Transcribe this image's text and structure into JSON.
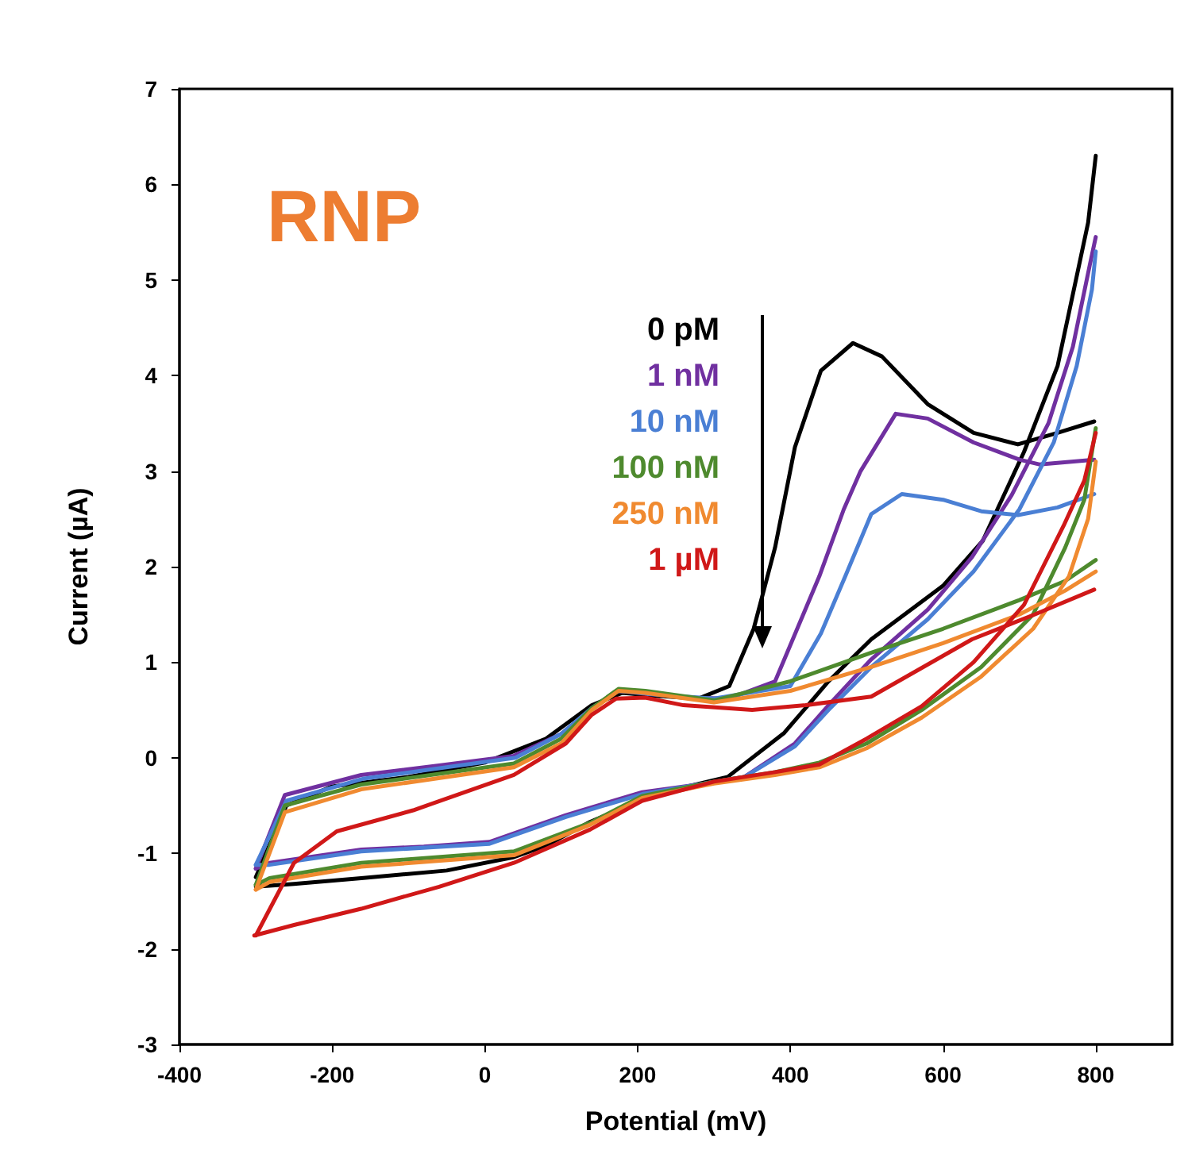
{
  "chart_data": {
    "type": "line",
    "xlabel": "Potential (mV)",
    "ylabel": "Current (µA)",
    "annotations": [
      "RNP"
    ],
    "xlim": [
      -400,
      900
    ],
    "xticks": [
      -400,
      -200,
      0,
      200,
      400,
      600,
      800
    ],
    "ylim": [
      -3,
      7
    ],
    "yticks": [
      -3,
      -2,
      -1,
      0,
      1,
      2,
      3,
      4,
      5,
      6,
      7
    ],
    "legend": "top",
    "marker": "none",
    "line_style": "solid",
    "series": [
      {
        "name": "0 pM",
        "color": "#000000",
        "x": [
          -300,
          -260,
          -200,
          -100,
          0,
          80,
          140,
          180,
          220,
          280,
          320,
          352,
          380,
          406,
          440,
          482,
          520,
          580,
          640,
          698,
          750,
          798
        ],
        "values": [
          -1.25,
          -0.5,
          -0.3,
          -0.2,
          -0.05,
          0.2,
          0.55,
          0.68,
          0.65,
          0.62,
          0.75,
          1.35,
          2.2,
          3.25,
          4.05,
          4.34,
          4.2,
          3.7,
          3.4,
          3.28,
          3.4,
          3.52
        ]
      },
      {
        "color": "#000000",
        "x": [
          800,
          790,
          778,
          750,
          706,
          652,
          600,
          506,
          450,
          392,
          318,
          250,
          206,
          138,
          80,
          38,
          -50,
          -162,
          -250,
          -300
        ],
        "values": [
          6.3,
          5.6,
          5.15,
          4.1,
          3.2,
          2.27,
          1.8,
          1.24,
          0.8,
          0.26,
          -0.2,
          -0.33,
          -0.44,
          -0.67,
          -0.92,
          -1.04,
          -1.18,
          -1.26,
          -1.32,
          -1.35
        ]
      },
      {
        "name": "1 nM",
        "color": "#7030a0",
        "x": [
          -300,
          -262,
          -162,
          -60,
          38,
          100,
          138,
          172,
          206,
          260,
          320,
          380,
          438,
          470,
          492,
          538,
          580,
          640,
          700,
          726,
          798
        ],
        "values": [
          -1.16,
          -0.39,
          -0.18,
          -0.08,
          0.02,
          0.25,
          0.5,
          0.7,
          0.68,
          0.63,
          0.62,
          0.8,
          1.9,
          2.6,
          3.0,
          3.6,
          3.55,
          3.3,
          3.12,
          3.07,
          3.12
        ]
      },
      {
        "color": "#7030a0",
        "x": [
          800,
          792,
          770,
          738,
          690,
          638,
          580,
          506,
          450,
          406,
          340,
          280,
          206,
          106,
          6,
          -80,
          -162,
          -282,
          -300
        ],
        "values": [
          5.45,
          5.15,
          4.3,
          3.5,
          2.75,
          2.1,
          1.55,
          1.03,
          0.55,
          0.15,
          -0.2,
          -0.28,
          -0.36,
          -0.6,
          -0.88,
          -0.93,
          -0.96,
          -1.1,
          -1.16
        ]
      },
      {
        "name": "10 nM",
        "color": "#4a7fd4",
        "x": [
          -300,
          -260,
          -160,
          40,
          100,
          140,
          175,
          210,
          300,
          400,
          440,
          472,
          506,
          546,
          600,
          650,
          698,
          750,
          798
        ],
        "values": [
          -1.12,
          -0.45,
          -0.22,
          0.0,
          0.25,
          0.52,
          0.7,
          0.67,
          0.62,
          0.75,
          1.3,
          1.9,
          2.55,
          2.76,
          2.7,
          2.58,
          2.54,
          2.62,
          2.76
        ]
      },
      {
        "color": "#4a7fd4",
        "x": [
          800,
          795,
          775,
          745,
          700,
          640,
          580,
          506,
          450,
          406,
          340,
          280,
          206,
          106,
          6,
          -162,
          -282,
          -300
        ],
        "values": [
          5.3,
          4.9,
          4.1,
          3.3,
          2.6,
          1.95,
          1.45,
          0.95,
          0.5,
          0.12,
          -0.2,
          -0.28,
          -0.38,
          -0.62,
          -0.9,
          -0.98,
          -1.12,
          -1.12
        ]
      },
      {
        "name": "100 nM",
        "color": "#4e8a2e",
        "x": [
          -300,
          -262,
          -162,
          38,
          100,
          140,
          175,
          210,
          300,
          400,
          506,
          600,
          700,
          760,
          800
        ],
        "values": [
          -1.33,
          -0.5,
          -0.28,
          -0.06,
          0.2,
          0.52,
          0.72,
          0.7,
          0.6,
          0.8,
          1.1,
          1.35,
          1.65,
          1.85,
          2.07
        ]
      },
      {
        "color": "#4e8a2e",
        "x": [
          800,
          785,
          760,
          718,
          650,
          572,
          500,
          438,
          380,
          300,
          206,
          138,
          38,
          -162,
          -282,
          -300
        ],
        "values": [
          3.45,
          2.7,
          2.2,
          1.5,
          0.95,
          0.5,
          0.15,
          -0.05,
          -0.15,
          -0.25,
          -0.4,
          -0.68,
          -0.98,
          -1.1,
          -1.26,
          -1.33
        ]
      },
      {
        "name": "250 nM",
        "color": "#f08a30",
        "x": [
          -300,
          -262,
          -162,
          38,
          100,
          140,
          175,
          210,
          300,
          400,
          506,
          600,
          700,
          760,
          800
        ],
        "values": [
          -1.38,
          -0.57,
          -0.33,
          -0.1,
          0.15,
          0.5,
          0.7,
          0.68,
          0.58,
          0.7,
          0.95,
          1.2,
          1.5,
          1.75,
          1.95
        ]
      },
      {
        "color": "#f08a30",
        "x": [
          800,
          790,
          765,
          718,
          650,
          572,
          500,
          438,
          380,
          300,
          206,
          138,
          38,
          -162,
          -282,
          -300
        ],
        "values": [
          3.1,
          2.5,
          1.9,
          1.35,
          0.85,
          0.42,
          0.1,
          -0.1,
          -0.18,
          -0.27,
          -0.42,
          -0.7,
          -1.02,
          -1.14,
          -1.3,
          -1.38
        ]
      },
      {
        "name": "1 µM",
        "color": "#d01818",
        "x": [
          -300,
          -250,
          -194,
          -94,
          38,
          106,
          140,
          172,
          210,
          260,
          350,
          420,
          506,
          638,
          720,
          798
        ],
        "values": [
          -1.86,
          -1.1,
          -0.77,
          -0.55,
          -0.18,
          0.15,
          0.45,
          0.62,
          0.63,
          0.55,
          0.5,
          0.55,
          0.64,
          1.24,
          1.5,
          1.76
        ]
      },
      {
        "color": "#d01818",
        "x": [
          800,
          785,
          758,
          706,
          640,
          572,
          500,
          438,
          380,
          300,
          206,
          138,
          38,
          -60,
          -162,
          -250,
          -302
        ],
        "values": [
          3.4,
          2.9,
          2.43,
          1.6,
          1.0,
          0.54,
          0.2,
          -0.07,
          -0.15,
          -0.25,
          -0.45,
          -0.75,
          -1.1,
          -1.35,
          -1.58,
          -1.75,
          -1.86
        ]
      }
    ]
  }
}
